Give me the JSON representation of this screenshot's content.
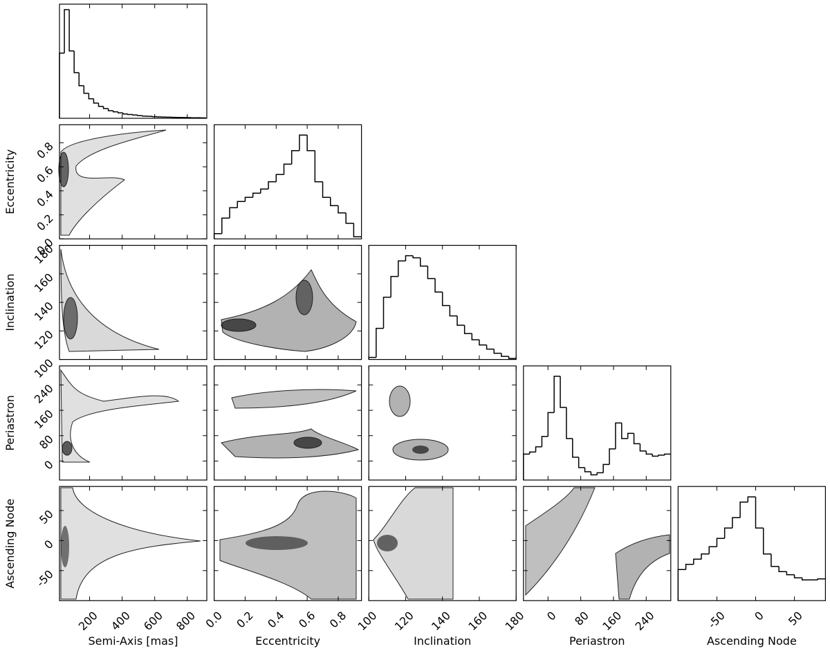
{
  "chart_data": {
    "type": "corner",
    "parameters": [
      {
        "label": "Semi-Axis [mas]",
        "xlim": [
          15,
          920
        ],
        "xticks": [
          200,
          400,
          600,
          800
        ],
        "bins": [
          15,
          45,
          75,
          105,
          135,
          165,
          195,
          225,
          255,
          285,
          315,
          345,
          375,
          405,
          435,
          465,
          495,
          525,
          555,
          585,
          615,
          645,
          675,
          705,
          735,
          765,
          795,
          825,
          855,
          885,
          915
        ],
        "values": [
          0.6,
          1.0,
          0.62,
          0.42,
          0.3,
          0.23,
          0.18,
          0.14,
          0.11,
          0.09,
          0.07,
          0.06,
          0.05,
          0.04,
          0.035,
          0.03,
          0.025,
          0.02,
          0.018,
          0.015,
          0.013,
          0.011,
          0.01,
          0.009,
          0.008,
          0.007,
          0.006,
          0.005,
          0.005,
          0.004
        ],
        "hist_ylim": [
          0,
          1.05
        ]
      },
      {
        "label": "Eccentricity",
        "xlim": [
          0,
          0.95
        ],
        "xticks": [
          {
            "value": 0,
            "label": "0.0"
          },
          0.2,
          0.4,
          0.6,
          0.8
        ],
        "bins": [
          0,
          0.05,
          0.1,
          0.15,
          0.2,
          0.25,
          0.3,
          0.35,
          0.4,
          0.45,
          0.5,
          0.55,
          0.6,
          0.65,
          0.7,
          0.75,
          0.8,
          0.85,
          0.9,
          0.95
        ],
        "values": [
          0.05,
          0.2,
          0.3,
          0.36,
          0.4,
          0.44,
          0.48,
          0.55,
          0.62,
          0.72,
          0.85,
          1.0,
          0.85,
          0.55,
          0.4,
          0.32,
          0.25,
          0.15,
          0.02
        ],
        "hist_ylim": [
          0,
          1.1
        ]
      },
      {
        "label": "Inclination",
        "xlim": [
          100,
          180
        ],
        "xticks": [
          100,
          120,
          140,
          160,
          180
        ],
        "bins": [
          100,
          104,
          108,
          112,
          116,
          120,
          124,
          128,
          132,
          136,
          140,
          144,
          148,
          152,
          156,
          160,
          164,
          168,
          172,
          176,
          180
        ],
        "values": [
          0.02,
          0.3,
          0.6,
          0.8,
          0.95,
          1.0,
          0.98,
          0.9,
          0.78,
          0.65,
          0.52,
          0.42,
          0.33,
          0.25,
          0.19,
          0.14,
          0.1,
          0.06,
          0.03,
          0.01
        ],
        "hist_ylim": [
          0,
          1.1
        ]
      },
      {
        "label": "Periastron",
        "xlim": [
          -60,
          300
        ],
        "xticks": [
          0,
          80,
          160,
          240
        ],
        "bins": [
          -60,
          -45,
          -30,
          -15,
          0,
          15,
          30,
          45,
          60,
          75,
          90,
          105,
          120,
          135,
          150,
          165,
          180,
          195,
          210,
          225,
          240,
          255,
          270,
          285,
          300
        ],
        "values": [
          0.25,
          0.27,
          0.32,
          0.42,
          0.65,
          1.0,
          0.7,
          0.4,
          0.22,
          0.12,
          0.08,
          0.05,
          0.07,
          0.15,
          0.3,
          0.55,
          0.4,
          0.45,
          0.35,
          0.28,
          0.25,
          0.23,
          0.24,
          0.25
        ],
        "hist_ylim": [
          0,
          1.1
        ]
      },
      {
        "label": "Ascending Node",
        "xlim": [
          -100,
          90
        ],
        "xticks": [
          -50,
          0,
          50
        ],
        "bins": [
          -100,
          -90,
          -80,
          -70,
          -60,
          -50,
          -40,
          -30,
          -20,
          -10,
          0,
          10,
          20,
          30,
          40,
          50,
          60,
          70,
          80,
          90
        ],
        "values": [
          0.3,
          0.35,
          0.4,
          0.45,
          0.52,
          0.6,
          0.7,
          0.8,
          0.95,
          1.0,
          0.7,
          0.45,
          0.33,
          0.28,
          0.25,
          0.22,
          0.2,
          0.2,
          0.21
        ],
        "hist_ylim": [
          0,
          1.1
        ]
      }
    ]
  }
}
